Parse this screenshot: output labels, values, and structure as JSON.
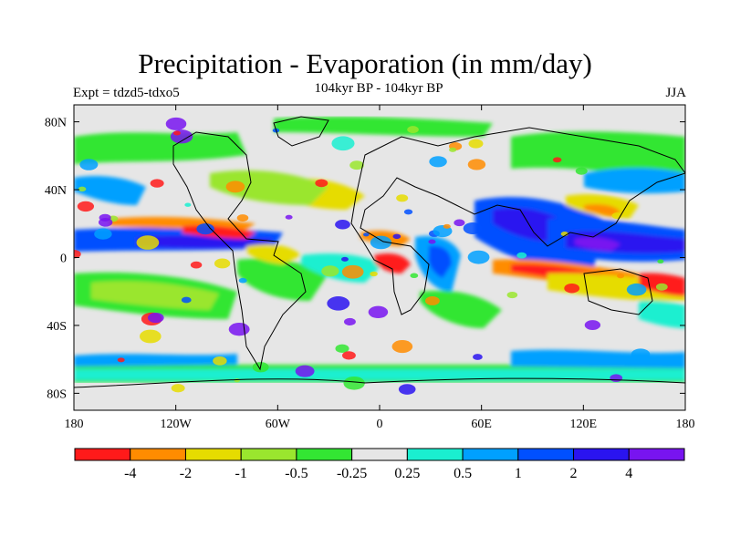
{
  "title": "Precipitation - Evaporation (in mm/day)",
  "subtitle": "104kyr BP - 104kyr BP",
  "left_label": "Expt = tdzd5-tdxo5",
  "right_label": "JJA",
  "lat_ticks": [
    {
      "label": "80N",
      "value": 80
    },
    {
      "label": "40N",
      "value": 40
    },
    {
      "label": "0",
      "value": 0
    },
    {
      "label": "40S",
      "value": -40
    },
    {
      "label": "80S",
      "value": -80
    }
  ],
  "lon_ticks": [
    {
      "label": "180",
      "value": -180
    },
    {
      "label": "120W",
      "value": -120
    },
    {
      "label": "60W",
      "value": -60
    },
    {
      "label": "0",
      "value": 0
    },
    {
      "label": "60E",
      "value": 60
    },
    {
      "label": "120E",
      "value": 120
    },
    {
      "label": "180",
      "value": 180
    }
  ],
  "colorbar": {
    "colors": [
      "#ff1a1a",
      "#ff8c00",
      "#e6dc00",
      "#9ae62e",
      "#33e633",
      "#e6e6e6",
      "#1aefd0",
      "#00a0ff",
      "#0050ff",
      "#2a14f0",
      "#7814f0"
    ],
    "labels": [
      "-4",
      "-2",
      "-1",
      "-0.5",
      "-0.25",
      "0.25",
      "0.5",
      "1",
      "2",
      "4"
    ]
  },
  "colors": {
    "background": "#e6e6e6",
    "coast": "#000000"
  }
}
